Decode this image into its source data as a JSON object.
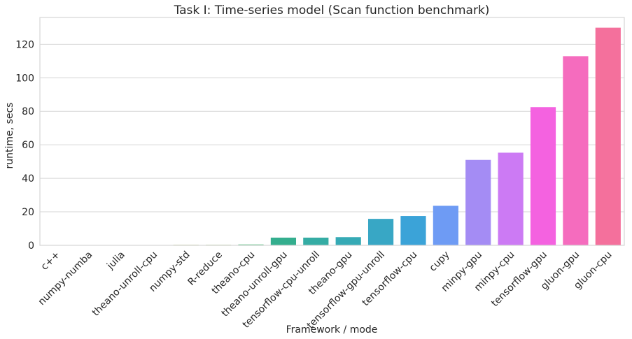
{
  "chart_data": {
    "type": "bar",
    "title": "Task I: Time-series model (Scan function benchmark)",
    "xlabel": "Framework / mode",
    "ylabel": "runtime, secs",
    "ylim": [
      0,
      136
    ],
    "yticks": [
      0,
      20,
      40,
      60,
      80,
      100,
      120
    ],
    "grid": "horizontal",
    "categories": [
      "c++",
      "numpy-numba",
      "julia",
      "theano-unroll-cpu",
      "numpy-std",
      "R-reduce",
      "theano-cpu",
      "theano-unroll-gpu",
      "tensorflow-cpu-unroll",
      "theano-gpu",
      "tensorflow-gpu-unroll",
      "tensorflow-cpu",
      "cupy",
      "minpy-gpu",
      "minpy-cpu",
      "tensorflow-gpu",
      "gluon-gpu",
      "gluon-cpu"
    ],
    "values": [
      0.1,
      0.2,
      0.2,
      0.2,
      0.3,
      0.3,
      0.5,
      4.6,
      4.6,
      4.9,
      15.8,
      17.5,
      23.6,
      51.0,
      55.3,
      82.5,
      112.9,
      129.9
    ],
    "colors": [
      "#f77189",
      "#f37932",
      "#ce8f31",
      "#b29b31",
      "#97a331",
      "#72ac31",
      "#32b166",
      "#34ae8e",
      "#35aca4",
      "#36aab5",
      "#38a7c5",
      "#3ba3d8",
      "#6e9bf4",
      "#a48cf4",
      "#cc7af4",
      "#f462e0",
      "#f56cbe",
      "#f4709c"
    ]
  }
}
